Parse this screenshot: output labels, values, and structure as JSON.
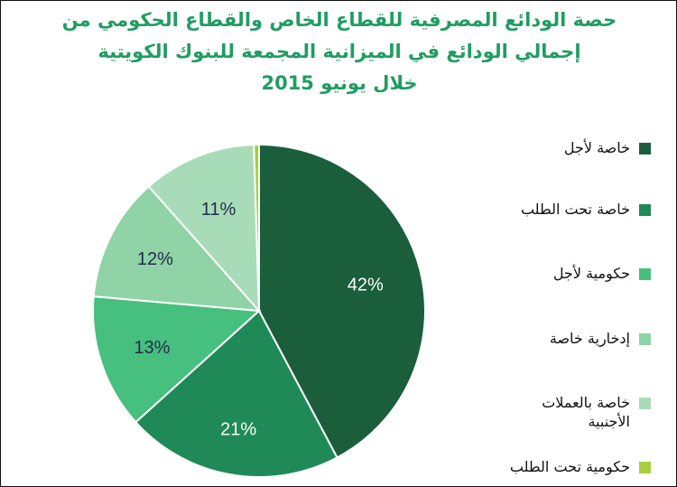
{
  "title": {
    "line1": "حصة الودائع المصرفية للقطاع الخاص والقطاع الحكومي من",
    "line2": "إجمالي الودائع في الميزانية المجمعة للبنوك الكويتية",
    "line3": "خلال يونيو  2015"
  },
  "chart_data": {
    "type": "pie",
    "title": "حصة الودائع المصرفية للقطاع الخاص والقطاع الحكومي من إجمالي الودائع في الميزانية المجمعة للبنوك الكويتية خلال يونيو  2015",
    "legend_position": "right",
    "start": "top",
    "direction": "clockwise",
    "slices": [
      {
        "name": "خاصة لأجل",
        "value": 42,
        "label": "42%",
        "color": "#1a5e3c",
        "label_color": "#ffffff"
      },
      {
        "name": "خاصة تحت الطلب",
        "value": 21,
        "label": "21%",
        "color": "#1f8a57",
        "label_color": "#ffffff"
      },
      {
        "name": "حكومية لأجل",
        "value": 13,
        "label": "13%",
        "color": "#47bf7e",
        "label_color": "#1f2d4a"
      },
      {
        "name": "إدخارية خاصة",
        "value": 12,
        "label": "12%",
        "color": "#8fd3a6",
        "label_color": "#1f2d4a"
      },
      {
        "name": "خاصة  بالعملات الأجنبية",
        "value": 11,
        "label": "11%",
        "color": "#a8dcb8",
        "label_color": "#1f2d4a"
      },
      {
        "name": "حكومية تحت الطلب",
        "value": 0.5,
        "label": "",
        "color": "#a7cf3f",
        "label_color": "#1f2d4a"
      }
    ]
  },
  "legend": [
    {
      "line1": "خاصة لأجل",
      "line2": ""
    },
    {
      "line1": "خاصة تحت الطلب",
      "line2": ""
    },
    {
      "line1": "حكومية لأجل",
      "line2": ""
    },
    {
      "line1": "إدخارية خاصة",
      "line2": ""
    },
    {
      "line1": "خاصة  بالعملات",
      "line2": "الأجنبية"
    },
    {
      "line1": "حكومية تحت الطلب",
      "line2": ""
    }
  ]
}
